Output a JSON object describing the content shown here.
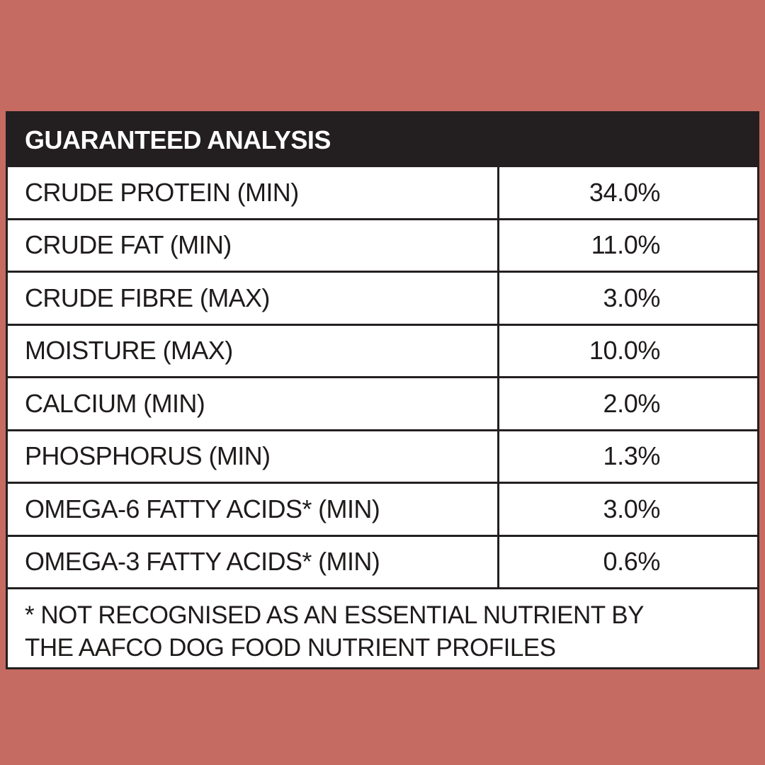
{
  "colors": {
    "background": "#c56b61",
    "header": "#231f20",
    "panel": "#ffffff",
    "text": "#1f1b1b"
  },
  "table": {
    "title": "GUARANTEED ANALYSIS",
    "rows": [
      {
        "label": "CRUDE PROTEIN (MIN)",
        "value": "34.0%"
      },
      {
        "label": "CRUDE FAT (MIN)",
        "value": "11.0%"
      },
      {
        "label": "CRUDE FIBRE (MAX)",
        "value": "3.0%"
      },
      {
        "label": "MOISTURE (MAX)",
        "value": "10.0%"
      },
      {
        "label": "CALCIUM (MIN)",
        "value": "2.0%"
      },
      {
        "label": "PHOSPHORUS (MIN)",
        "value": "1.3%"
      },
      {
        "label": "OMEGA-6 FATTY ACIDS* (MIN)",
        "value": "3.0%"
      },
      {
        "label": "OMEGA-3 FATTY ACIDS* (MIN)",
        "value": "0.6%"
      }
    ],
    "footnote": {
      "line1": "* NOT RECOGNISED AS AN ESSENTIAL NUTRIENT BY",
      "line2": "THE AAFCO DOG FOOD NUTRIENT PROFILES"
    }
  }
}
